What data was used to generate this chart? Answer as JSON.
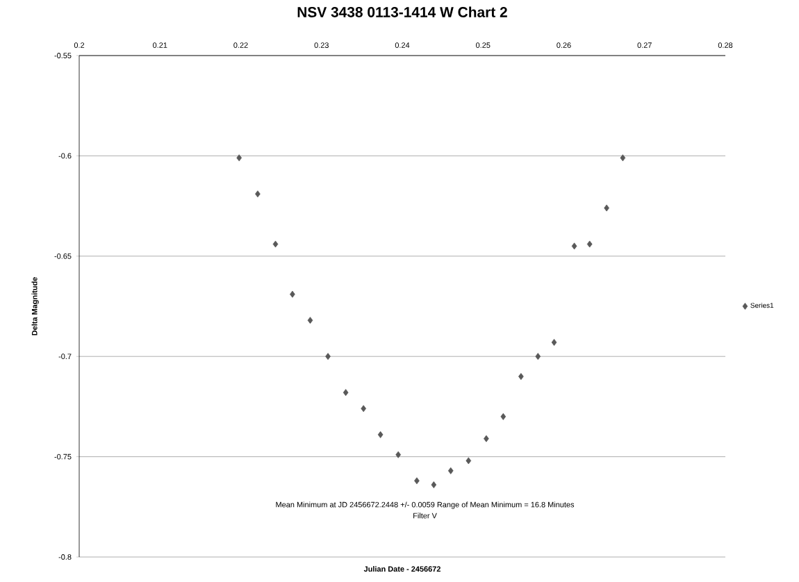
{
  "chart_data": {
    "type": "scatter",
    "title": "NSV 3438  0113-1414  W  Chart 2",
    "xlabel": "Julian  Date  -  2456672",
    "ylabel": "Delta  Magnitude",
    "annotations": [
      "Mean Minimum at JD 2456672.2448 +/- 0.0059   Range of Mean Minimum  = 16.8 Minutes",
      "Filter V"
    ],
    "x": [
      0.2198,
      0.2221,
      0.2243,
      0.2264,
      0.2286,
      0.2308,
      0.233,
      0.2352,
      0.2373,
      0.2395,
      0.2418,
      0.2439,
      0.246,
      0.2482,
      0.2504,
      0.2525,
      0.2547,
      0.2568,
      0.2588,
      0.2613,
      0.2632,
      0.2653,
      0.2673
    ],
    "series": [
      {
        "name": "Series1",
        "color": "#595959",
        "values": [
          -0.601,
          -0.619,
          -0.644,
          -0.669,
          -0.682,
          -0.7,
          -0.718,
          -0.726,
          -0.739,
          -0.749,
          -0.762,
          -0.764,
          -0.757,
          -0.752,
          -0.741,
          -0.73,
          -0.71,
          -0.7,
          -0.693,
          -0.645,
          -0.644,
          -0.626,
          -0.601
        ]
      }
    ],
    "xlim": [
      0.2,
      0.28
    ],
    "xticks": [
      0.2,
      0.21,
      0.22,
      0.23,
      0.24,
      0.25,
      0.26,
      0.27,
      0.28
    ],
    "ylim": [
      -0.8,
      -0.55
    ],
    "yticks": [
      -0.8,
      -0.75,
      -0.7,
      -0.65,
      -0.6,
      -0.55
    ],
    "grid": "y",
    "legend": "right",
    "marker": "diamond"
  }
}
